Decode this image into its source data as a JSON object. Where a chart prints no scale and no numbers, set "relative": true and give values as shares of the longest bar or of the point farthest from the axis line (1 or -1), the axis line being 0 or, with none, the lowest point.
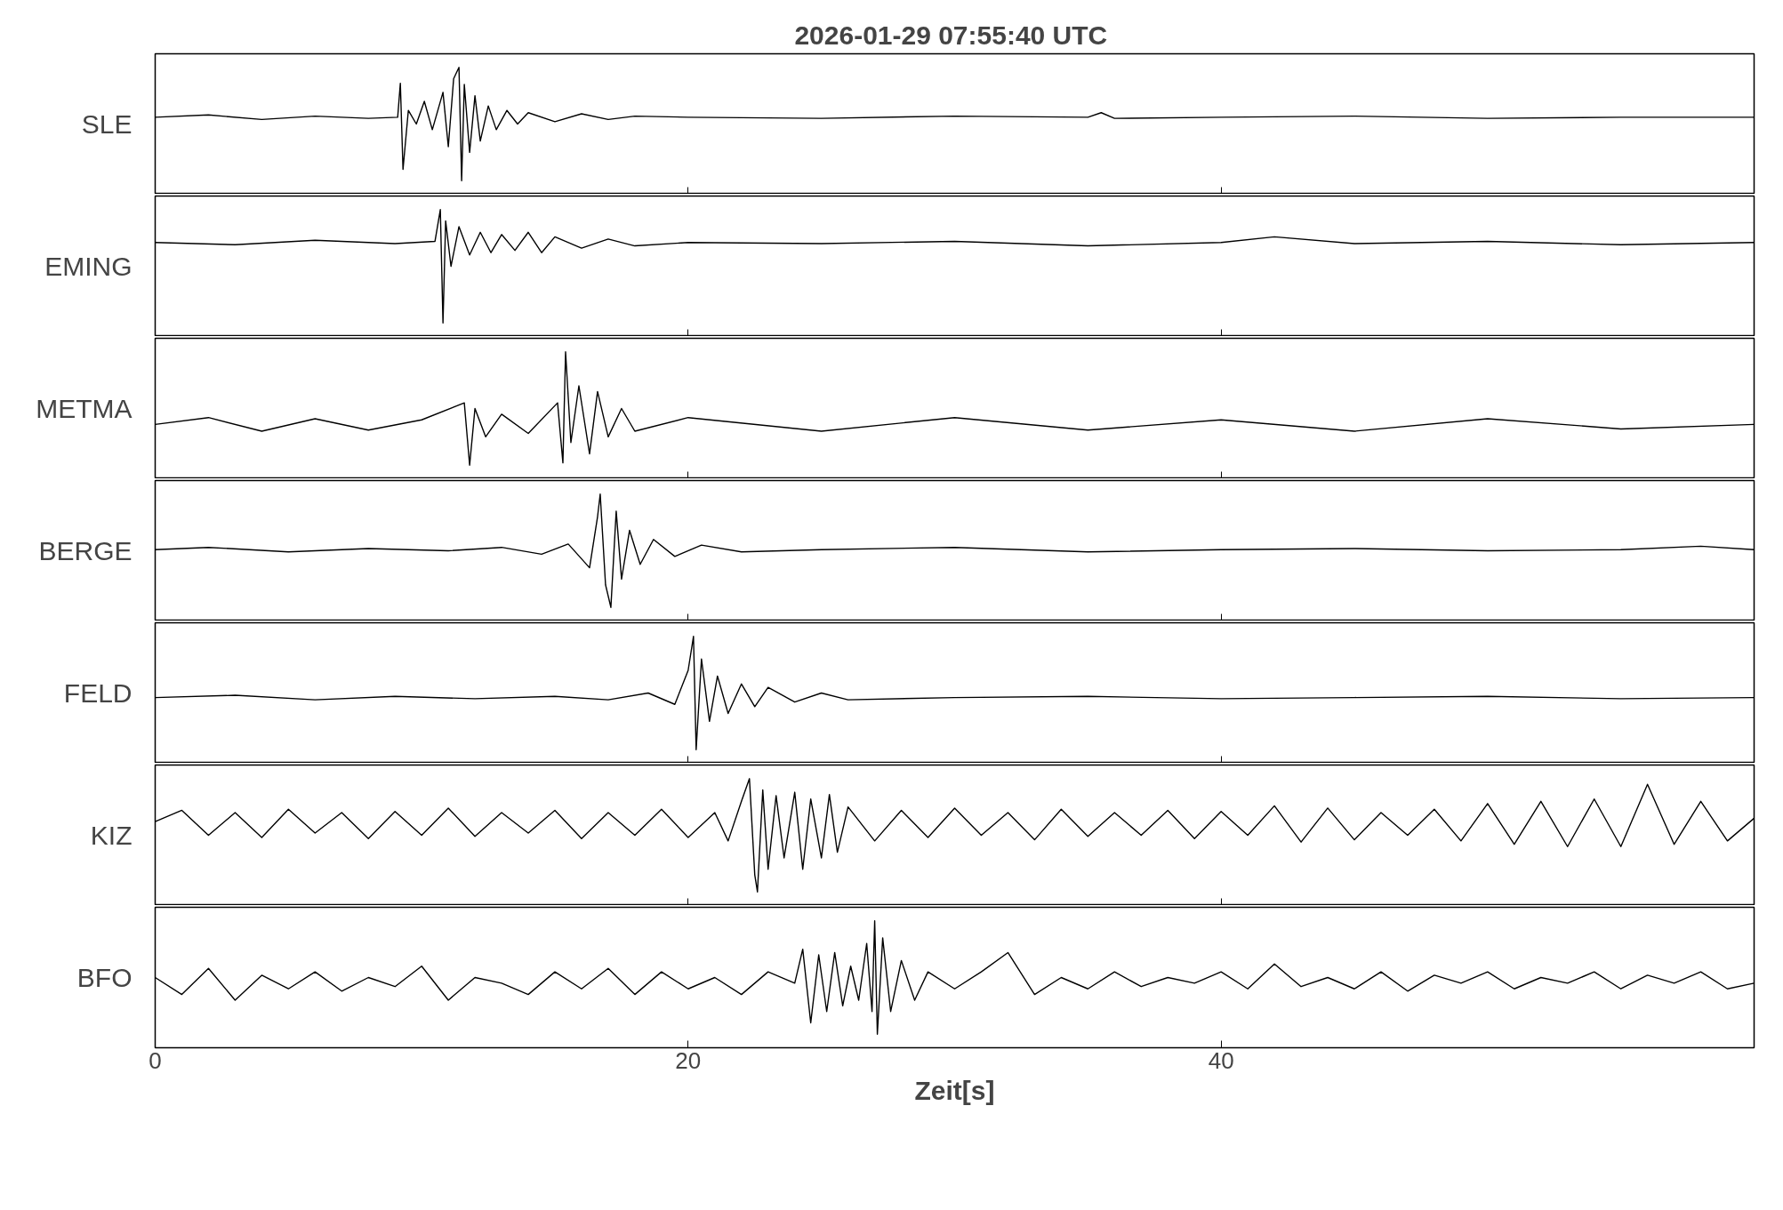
{
  "chart_data": [
    {
      "type": "line",
      "title": "2026-01-29  07:55:40 UTC",
      "ylabel": "SLE",
      "relative": true,
      "xlim": [
        0,
        60
      ],
      "xticks": [
        0,
        20,
        40
      ],
      "tick_labels": false,
      "series": [
        {
          "color": "#000000",
          "x": [
            0,
            2,
            4,
            6,
            8,
            9.1,
            9.2,
            9.3,
            9.5,
            9.8,
            10.1,
            10.4,
            10.8,
            11.0,
            11.2,
            11.4,
            11.5,
            11.6,
            11.8,
            12.0,
            12.2,
            12.5,
            12.8,
            13.2,
            13.6,
            14,
            15,
            16,
            17,
            18,
            20,
            25,
            30,
            35,
            35.5,
            36,
            40,
            45,
            50,
            55,
            60
          ],
          "values": [
            0.56,
            0.58,
            0.54,
            0.57,
            0.55,
            0.56,
            0.86,
            0.1,
            0.62,
            0.5,
            0.7,
            0.45,
            0.78,
            0.3,
            0.9,
            1.0,
            0.0,
            0.85,
            0.25,
            0.75,
            0.35,
            0.66,
            0.45,
            0.62,
            0.5,
            0.6,
            0.52,
            0.59,
            0.54,
            0.57,
            0.56,
            0.55,
            0.57,
            0.56,
            0.6,
            0.55,
            0.56,
            0.57,
            0.55,
            0.56,
            0.56
          ]
        }
      ]
    },
    {
      "type": "line",
      "ylabel": "EMING",
      "relative": true,
      "xlim": [
        0,
        60
      ],
      "xticks": [
        0,
        20,
        40
      ],
      "tick_labels": false,
      "series": [
        {
          "color": "#000000",
          "x": [
            0,
            3,
            6,
            9,
            10.5,
            10.7,
            10.8,
            10.9,
            11.1,
            11.4,
            11.8,
            12.2,
            12.6,
            13,
            13.5,
            14,
            14.5,
            15,
            16,
            17,
            18,
            20,
            25,
            30,
            35,
            40,
            42,
            45,
            50,
            55,
            60
          ],
          "values": [
            0.71,
            0.69,
            0.73,
            0.7,
            0.72,
            1.0,
            0.0,
            0.9,
            0.5,
            0.85,
            0.6,
            0.8,
            0.62,
            0.78,
            0.64,
            0.8,
            0.62,
            0.76,
            0.66,
            0.74,
            0.68,
            0.71,
            0.7,
            0.72,
            0.68,
            0.71,
            0.76,
            0.7,
            0.72,
            0.69,
            0.71
          ]
        }
      ]
    },
    {
      "type": "line",
      "ylabel": "METMA",
      "relative": true,
      "xlim": [
        0,
        60
      ],
      "xticks": [
        0,
        20,
        40
      ],
      "tick_labels": false,
      "series": [
        {
          "color": "#000000",
          "x": [
            0,
            2,
            4,
            6,
            8,
            10,
            11.6,
            11.8,
            12,
            12.4,
            13,
            14,
            15.1,
            15.3,
            15.4,
            15.6,
            15.9,
            16.3,
            16.6,
            17,
            17.5,
            18,
            20,
            25,
            30,
            35,
            40,
            45,
            50,
            55,
            60
          ],
          "values": [
            0.36,
            0.42,
            0.3,
            0.41,
            0.31,
            0.4,
            0.55,
            0.0,
            0.5,
            0.25,
            0.45,
            0.28,
            0.55,
            0.02,
            1.0,
            0.2,
            0.7,
            0.1,
            0.65,
            0.25,
            0.5,
            0.3,
            0.42,
            0.3,
            0.42,
            0.31,
            0.4,
            0.3,
            0.41,
            0.32,
            0.36
          ]
        }
      ]
    },
    {
      "type": "line",
      "ylabel": "BERGE",
      "relative": true,
      "xlim": [
        0,
        60
      ],
      "xticks": [
        0,
        20,
        40
      ],
      "tick_labels": false,
      "series": [
        {
          "color": "#000000",
          "x": [
            0,
            2,
            5,
            8,
            11,
            13,
            14.5,
            15.5,
            16.3,
            16.6,
            16.7,
            16.9,
            17.1,
            17.3,
            17.5,
            17.8,
            18.2,
            18.7,
            19.5,
            20.5,
            22,
            25,
            30,
            35,
            40,
            45,
            50,
            55,
            58,
            60
          ],
          "values": [
            0.51,
            0.53,
            0.49,
            0.52,
            0.5,
            0.53,
            0.47,
            0.56,
            0.35,
            0.8,
            1.0,
            0.2,
            0.0,
            0.85,
            0.25,
            0.68,
            0.38,
            0.6,
            0.45,
            0.55,
            0.49,
            0.51,
            0.53,
            0.49,
            0.51,
            0.52,
            0.5,
            0.51,
            0.54,
            0.51
          ]
        }
      ]
    },
    {
      "type": "line",
      "ylabel": "FELD",
      "relative": true,
      "xlim": [
        0,
        60
      ],
      "xticks": [
        0,
        20,
        40
      ],
      "tick_labels": false,
      "series": [
        {
          "color": "#000000",
          "x": [
            0,
            3,
            6,
            9,
            12,
            15,
            17,
            18.5,
            19.5,
            20.0,
            20.2,
            20.3,
            20.5,
            20.8,
            21.1,
            21.5,
            22,
            22.5,
            23,
            24,
            25,
            26,
            30,
            35,
            40,
            45,
            50,
            55,
            60
          ],
          "values": [
            0.46,
            0.48,
            0.44,
            0.47,
            0.45,
            0.47,
            0.44,
            0.5,
            0.4,
            0.7,
            1.0,
            0.0,
            0.8,
            0.25,
            0.65,
            0.32,
            0.58,
            0.38,
            0.55,
            0.42,
            0.5,
            0.44,
            0.46,
            0.47,
            0.45,
            0.46,
            0.47,
            0.45,
            0.46
          ]
        }
      ]
    },
    {
      "type": "line",
      "ylabel": "KIZ",
      "relative": true,
      "xlim": [
        0,
        60
      ],
      "xticks": [
        0,
        20,
        40
      ],
      "tick_labels": false,
      "series": [
        {
          "color": "#000000",
          "x": [
            0,
            1,
            2,
            3,
            4,
            5,
            6,
            7,
            8,
            9,
            10,
            11,
            12,
            13,
            14,
            15,
            16,
            17,
            18,
            19,
            20,
            21,
            21.5,
            22,
            22.3,
            22.5,
            22.6,
            22.8,
            23,
            23.3,
            23.6,
            24,
            24.3,
            24.6,
            25,
            25.3,
            25.6,
            26,
            27,
            28,
            29,
            30,
            31,
            32,
            33,
            34,
            35,
            36,
            37,
            38,
            39,
            40,
            41,
            42,
            43,
            44,
            45,
            46,
            47,
            48,
            49,
            50,
            51,
            52,
            53,
            54,
            55,
            56,
            57,
            58,
            59,
            60
          ],
          "values": [
            0.62,
            0.72,
            0.5,
            0.7,
            0.48,
            0.73,
            0.52,
            0.7,
            0.47,
            0.71,
            0.5,
            0.74,
            0.49,
            0.7,
            0.52,
            0.72,
            0.47,
            0.7,
            0.5,
            0.73,
            0.48,
            0.7,
            0.45,
            0.8,
            1.0,
            0.15,
            0.0,
            0.9,
            0.2,
            0.85,
            0.3,
            0.88,
            0.2,
            0.82,
            0.3,
            0.86,
            0.35,
            0.75,
            0.45,
            0.72,
            0.48,
            0.74,
            0.5,
            0.7,
            0.46,
            0.73,
            0.49,
            0.7,
            0.5,
            0.72,
            0.47,
            0.71,
            0.5,
            0.76,
            0.44,
            0.74,
            0.46,
            0.7,
            0.5,
            0.73,
            0.45,
            0.78,
            0.42,
            0.8,
            0.4,
            0.82,
            0.4,
            0.95,
            0.42,
            0.8,
            0.45,
            0.65
          ]
        }
      ]
    },
    {
      "type": "line",
      "ylabel": "BFO",
      "xlabel": "Zeit[s]",
      "relative": true,
      "xlim": [
        0,
        60
      ],
      "xticks": [
        0,
        20,
        40
      ],
      "tick_labels": "x",
      "series": [
        {
          "color": "#000000",
          "x": [
            0,
            1,
            2,
            3,
            4,
            5,
            6,
            7,
            8,
            9,
            10,
            11,
            12,
            13,
            14,
            15,
            16,
            17,
            18,
            19,
            20,
            21,
            22,
            23,
            24,
            24.3,
            24.6,
            24.9,
            25.2,
            25.5,
            25.8,
            26.1,
            26.4,
            26.7,
            26.9,
            27.0,
            27.1,
            27.3,
            27.6,
            28,
            28.5,
            29,
            30,
            31,
            32,
            33,
            34,
            35,
            36,
            37,
            38,
            39,
            40,
            41,
            42,
            43,
            44,
            45,
            46,
            47,
            48,
            49,
            50,
            51,
            52,
            53,
            54,
            55,
            56,
            57,
            58,
            59,
            60
          ],
          "values": [
            0.5,
            0.35,
            0.58,
            0.3,
            0.52,
            0.4,
            0.55,
            0.38,
            0.5,
            0.42,
            0.6,
            0.3,
            0.5,
            0.45,
            0.35,
            0.55,
            0.4,
            0.58,
            0.35,
            0.55,
            0.4,
            0.5,
            0.35,
            0.55,
            0.45,
            0.75,
            0.1,
            0.7,
            0.2,
            0.72,
            0.25,
            0.6,
            0.3,
            0.8,
            0.2,
            1.0,
            0.0,
            0.85,
            0.2,
            0.65,
            0.3,
            0.55,
            0.4,
            0.55,
            0.72,
            0.35,
            0.5,
            0.4,
            0.55,
            0.42,
            0.5,
            0.45,
            0.55,
            0.4,
            0.62,
            0.42,
            0.5,
            0.4,
            0.55,
            0.38,
            0.52,
            0.45,
            0.55,
            0.4,
            0.5,
            0.45,
            0.55,
            0.4,
            0.52,
            0.45,
            0.55,
            0.4,
            0.45
          ]
        }
      ]
    }
  ]
}
